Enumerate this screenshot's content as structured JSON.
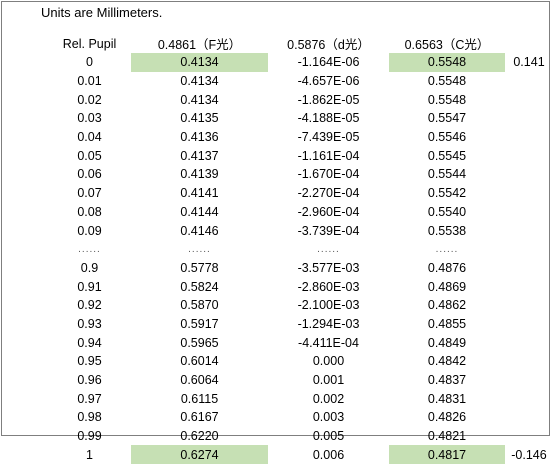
{
  "units_note": "Units are Millimeters.",
  "headers": {
    "pupil": "Rel. Pupil",
    "f": "0.4861（F光）",
    "d": "0.5876（d光）",
    "c": "0.6563（C光）"
  },
  "rows": [
    {
      "pupil": "0",
      "f": "0.4134",
      "d": "-1.164E-06",
      "c": "0.5548",
      "extra": "0.141",
      "highlight": true
    },
    {
      "pupil": "0.01",
      "f": "0.4134",
      "d": "-4.657E-06",
      "c": "0.5548",
      "extra": "",
      "highlight": false
    },
    {
      "pupil": "0.02",
      "f": "0.4134",
      "d": "-1.862E-05",
      "c": "0.5548",
      "extra": "",
      "highlight": false
    },
    {
      "pupil": "0.03",
      "f": "0.4135",
      "d": "-4.188E-05",
      "c": "0.5547",
      "extra": "",
      "highlight": false
    },
    {
      "pupil": "0.04",
      "f": "0.4136",
      "d": "-7.439E-05",
      "c": "0.5546",
      "extra": "",
      "highlight": false
    },
    {
      "pupil": "0.05",
      "f": "0.4137",
      "d": "-1.161E-04",
      "c": "0.5545",
      "extra": "",
      "highlight": false
    },
    {
      "pupil": "0.06",
      "f": "0.4139",
      "d": "-1.670E-04",
      "c": "0.5544",
      "extra": "",
      "highlight": false
    },
    {
      "pupil": "0.07",
      "f": "0.4141",
      "d": "-2.270E-04",
      "c": "0.5542",
      "extra": "",
      "highlight": false
    },
    {
      "pupil": "0.08",
      "f": "0.4144",
      "d": "-2.960E-04",
      "c": "0.5540",
      "extra": "",
      "highlight": false
    },
    {
      "pupil": "0.09",
      "f": "0.4146",
      "d": "-3.739E-04",
      "c": "0.5538",
      "extra": "",
      "highlight": false
    },
    {
      "pupil": "......",
      "f": "......",
      "d": "......",
      "c": "......",
      "extra": "",
      "highlight": false,
      "ellipsis": true
    },
    {
      "pupil": "0.9",
      "f": "0.5778",
      "d": "-3.577E-03",
      "c": "0.4876",
      "extra": "",
      "highlight": false
    },
    {
      "pupil": "0.91",
      "f": "0.5824",
      "d": "-2.860E-03",
      "c": "0.4869",
      "extra": "",
      "highlight": false
    },
    {
      "pupil": "0.92",
      "f": "0.5870",
      "d": "-2.100E-03",
      "c": "0.4862",
      "extra": "",
      "highlight": false
    },
    {
      "pupil": "0.93",
      "f": "0.5917",
      "d": "-1.294E-03",
      "c": "0.4855",
      "extra": "",
      "highlight": false
    },
    {
      "pupil": "0.94",
      "f": "0.5965",
      "d": "-4.411E-04",
      "c": "0.4849",
      "extra": "",
      "highlight": false
    },
    {
      "pupil": "0.95",
      "f": "0.6014",
      "d": "0.000",
      "c": "0.4842",
      "extra": "",
      "highlight": false
    },
    {
      "pupil": "0.96",
      "f": "0.6064",
      "d": "0.001",
      "c": "0.4837",
      "extra": "",
      "highlight": false
    },
    {
      "pupil": "0.97",
      "f": "0.6115",
      "d": "0.002",
      "c": "0.4831",
      "extra": "",
      "highlight": false
    },
    {
      "pupil": "0.98",
      "f": "0.6167",
      "d": "0.003",
      "c": "0.4826",
      "extra": "",
      "highlight": false
    },
    {
      "pupil": "0.99",
      "f": "0.6220",
      "d": "0.005",
      "c": "0.4821",
      "extra": "",
      "highlight": false
    },
    {
      "pupil": "1",
      "f": "0.6274",
      "d": "0.006",
      "c": "0.4817",
      "extra": "-0.146",
      "highlight": true
    }
  ],
  "colors": {
    "highlight": "#c6e0b4",
    "frame_border": "#7f7f7f"
  }
}
